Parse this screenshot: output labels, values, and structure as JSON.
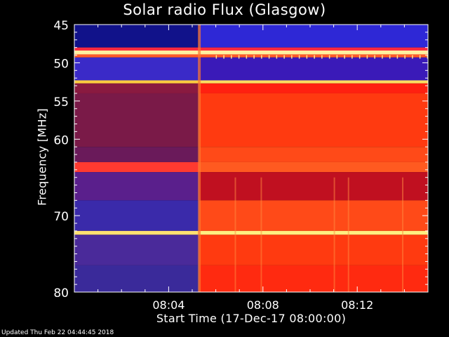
{
  "chart_data": {
    "type": "heatmap",
    "title": "Solar radio Flux (Glasgow)",
    "xlabel": "Start Time (17-Dec-17 08:00:00)",
    "ylabel": "Frequency [MHz]",
    "x_unit": "minutes after 08:00:00",
    "xlim": [
      0,
      15
    ],
    "ylim": [
      45,
      80
    ],
    "x_ticks": [
      4,
      8,
      12
    ],
    "x_tick_labels": [
      "08:04",
      "08:08",
      "08:12"
    ],
    "y_ticks": [
      45,
      50,
      55,
      60,
      70,
      80
    ],
    "y_tick_labels": [
      "45",
      "50",
      "55",
      "60",
      "70",
      "80"
    ],
    "burst_onset_time": 5.3,
    "colors": {
      "quiet_blue": "#2233cc",
      "quiet_purple": "#5a1f8c",
      "quiet_maroon": "#7a1a4a",
      "active_red": "#ff2a10",
      "active_orange": "#ff5a18",
      "band_yellow": "#ffe060",
      "band_dark_red": "#8a0a28"
    },
    "bands": [
      {
        "freq_start": 45,
        "freq_end": 48.0,
        "before": "#11128a",
        "after": "#2e28d6"
      },
      {
        "freq_start": 48.0,
        "freq_end": 48.4,
        "before": "#ff2a40",
        "after": "#ff2a40"
      },
      {
        "freq_start": 48.4,
        "freq_end": 48.9,
        "before": "#fff0a0",
        "after": "#fff0a0"
      },
      {
        "freq_start": 48.9,
        "freq_end": 49.3,
        "before": "#ff5a28",
        "after": "#ff5a28"
      },
      {
        "freq_start": 49.3,
        "freq_end": 52.3,
        "before": "#3a2ac8",
        "after": "#3a1ab8"
      },
      {
        "freq_start": 52.3,
        "freq_end": 52.7,
        "before": "#ffcc40",
        "after": "#ffdd60"
      },
      {
        "freq_start": 52.7,
        "freq_end": 54.0,
        "before": "#8a1a40",
        "after": "#ff2010"
      },
      {
        "freq_start": 54.0,
        "freq_end": 61.0,
        "before": "#7a1a48",
        "after": "#ff3a10"
      },
      {
        "freq_start": 61.0,
        "freq_end": 63.0,
        "before": "#6a1a5a",
        "after": "#ff4a18"
      },
      {
        "freq_start": 63.0,
        "freq_end": 64.3,
        "before": "#ff3a30",
        "after": "#ff5a20"
      },
      {
        "freq_start": 64.3,
        "freq_end": 68.0,
        "before": "#5a1f8c",
        "after": "#c01020"
      },
      {
        "freq_start": 68.0,
        "freq_end": 72.0,
        "before": "#3a2aaa",
        "after": "#ff4a18"
      },
      {
        "freq_start": 72.0,
        "freq_end": 72.5,
        "before": "#ffe070",
        "after": "#ffee80"
      },
      {
        "freq_start": 72.5,
        "freq_end": 76.5,
        "before": "#4a2a9a",
        "after": "#ff3a10"
      },
      {
        "freq_start": 76.5,
        "freq_end": 80.5,
        "before": "#3a2a9a",
        "after": "#ff2a10"
      }
    ]
  },
  "footer": {
    "updated_text": "Updated Thu Feb 22 04:44:45 2018"
  }
}
